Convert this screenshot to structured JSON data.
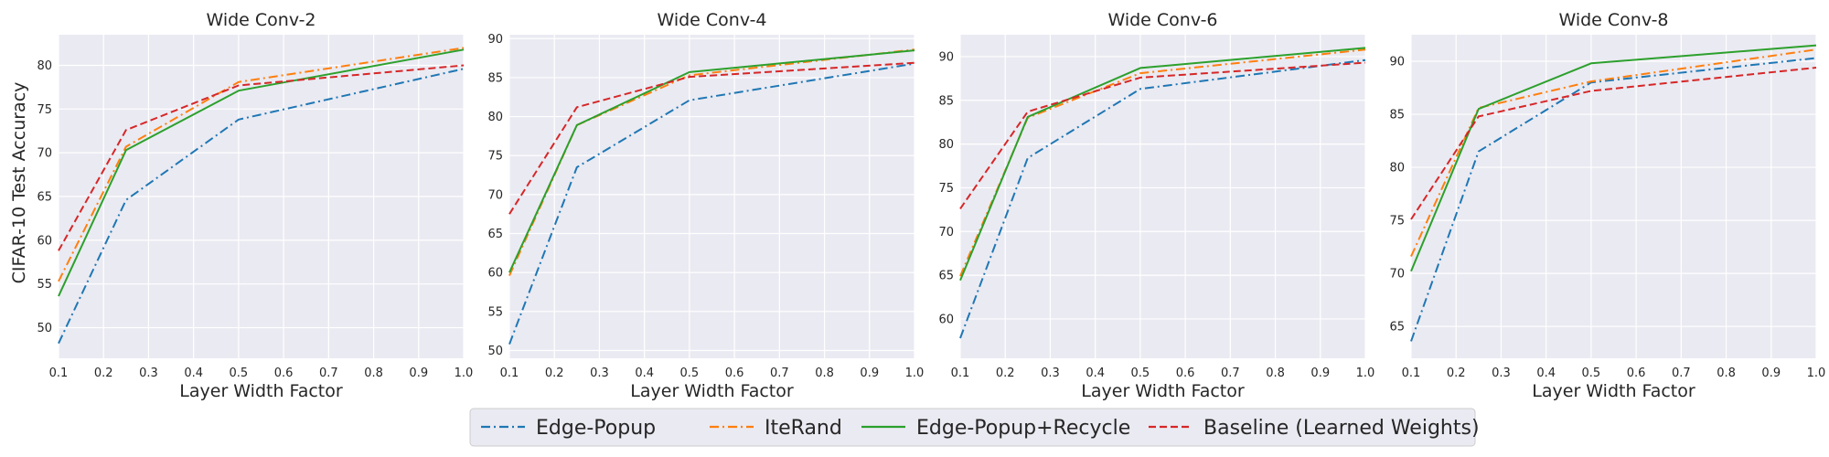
{
  "chart_data": {
    "type": "line",
    "ylabel": "CIFAR-10 Test Accuracy",
    "legend": {
      "placement": "bottom-center",
      "entries": [
        {
          "name": "Edge-Popup",
          "color": "#1f77b4",
          "dash": "dashdot"
        },
        {
          "name": "IteRand",
          "color": "#ff7f0e",
          "dash": "dashdot"
        },
        {
          "name": "Edge-Popup+Recycle",
          "color": "#2ca02c",
          "dash": "solid"
        },
        {
          "name": "Baseline (Learned Weights)",
          "color": "#d62728",
          "dash": "dashed"
        }
      ]
    },
    "grid": true,
    "panels": [
      {
        "title": "Wide Conv-2",
        "xlabel": "Layer Width Factor",
        "xlim": [
          0.1,
          1.0
        ],
        "ylim": [
          46.5,
          83.5
        ],
        "yticks": [
          50,
          55,
          60,
          65,
          70,
          75,
          80
        ],
        "xticks": [
          "0.1",
          "0.2",
          "0.3",
          "0.4",
          "0.5",
          "0.6",
          "0.7",
          "0.8",
          "0.9",
          "1.0"
        ],
        "x": [
          0.1,
          0.25,
          0.5,
          1.0
        ],
        "series": [
          {
            "name": "Edge-Popup",
            "values": [
              48.2,
              64.6,
              73.8,
              79.6
            ]
          },
          {
            "name": "IteRand",
            "values": [
              55.3,
              70.7,
              78.1,
              82.0
            ]
          },
          {
            "name": "Edge-Popup+Recycle",
            "values": [
              53.6,
              70.3,
              77.1,
              81.8
            ]
          },
          {
            "name": "Baseline (Learned Weights)",
            "values": [
              58.8,
              72.6,
              77.7,
              80.0
            ]
          }
        ]
      },
      {
        "title": "Wide Conv-4",
        "xlabel": "Layer Width Factor",
        "xlim": [
          0.1,
          1.0
        ],
        "ylim": [
          49.0,
          90.5
        ],
        "yticks": [
          50,
          55,
          60,
          65,
          70,
          75,
          80,
          85,
          90
        ],
        "xticks": [
          "0.1",
          "0.2",
          "0.3",
          "0.4",
          "0.5",
          "0.6",
          "0.7",
          "0.8",
          "0.9",
          "1.0"
        ],
        "x": [
          0.1,
          0.25,
          0.5,
          1.0
        ],
        "series": [
          {
            "name": "Edge-Popup",
            "values": [
              50.8,
              73.5,
              82.1,
              86.8
            ]
          },
          {
            "name": "IteRand",
            "values": [
              59.6,
              78.9,
              85.3,
              88.6
            ]
          },
          {
            "name": "Edge-Popup+Recycle",
            "values": [
              60.0,
              78.9,
              85.7,
              88.5
            ]
          },
          {
            "name": "Baseline (Learned Weights)",
            "values": [
              67.5,
              81.2,
              85.1,
              86.9
            ]
          }
        ]
      },
      {
        "title": "Wide Conv-6",
        "xlabel": "Layer Width Factor",
        "xlim": [
          0.1,
          1.0
        ],
        "ylim": [
          55.5,
          92.5
        ],
        "yticks": [
          60,
          65,
          70,
          75,
          80,
          85,
          90
        ],
        "xticks": [
          "0.1",
          "0.2",
          "0.3",
          "0.4",
          "0.5",
          "0.6",
          "0.7",
          "0.8",
          "0.9",
          "1.0"
        ],
        "x": [
          0.1,
          0.25,
          0.5,
          1.0
        ],
        "series": [
          {
            "name": "Edge-Popup",
            "values": [
              57.8,
              78.4,
              86.3,
              89.6
            ]
          },
          {
            "name": "IteRand",
            "values": [
              64.9,
              83.0,
              88.1,
              90.8
            ]
          },
          {
            "name": "Edge-Popup+Recycle",
            "values": [
              64.4,
              83.1,
              88.7,
              91.0
            ]
          },
          {
            "name": "Baseline (Learned Weights)",
            "values": [
              72.6,
              83.7,
              87.6,
              89.3
            ]
          }
        ]
      },
      {
        "title": "Wide Conv-8",
        "xlabel": "Layer Width Factor",
        "xlim": [
          0.1,
          1.0
        ],
        "ylim": [
          62.0,
          92.5
        ],
        "yticks": [
          65,
          70,
          75,
          80,
          85,
          90
        ],
        "xticks": [
          "0.1",
          "0.2",
          "0.3",
          "0.4",
          "0.5",
          "0.6",
          "0.7",
          "0.8",
          "0.9",
          "1.0"
        ],
        "x": [
          0.1,
          0.25,
          0.5,
          1.0
        ],
        "series": [
          {
            "name": "Edge-Popup",
            "values": [
              63.6,
              81.5,
              88.0,
              90.3
            ]
          },
          {
            "name": "IteRand",
            "values": [
              71.6,
              85.6,
              88.1,
              91.1
            ]
          },
          {
            "name": "Edge-Popup+Recycle",
            "values": [
              70.2,
              85.5,
              89.8,
              91.5
            ]
          },
          {
            "name": "Baseline (Learned Weights)",
            "values": [
              75.1,
              84.8,
              87.2,
              89.4
            ]
          }
        ]
      }
    ]
  }
}
